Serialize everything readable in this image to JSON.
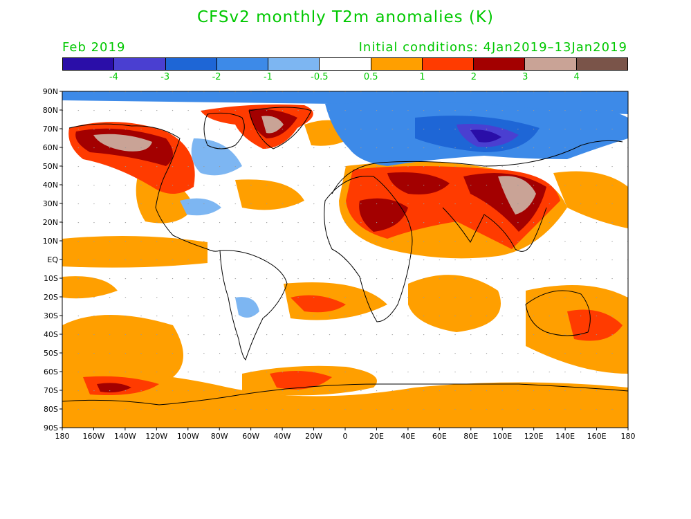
{
  "title": "CFSv2 monthly T2m anomalies (K)",
  "subtitle_left": "Feb 2019",
  "subtitle_right": "Initial conditions: 4Jan2019–13Jan2019",
  "colorbar": {
    "colors": [
      "#2a0ea8",
      "#4a3fd1",
      "#1e66d6",
      "#3d8ae8",
      "#7db6f2",
      "#ffffff",
      "#ff9f00",
      "#ff3b00",
      "#a30000",
      "#c9a396",
      "#7a5449"
    ],
    "labels": [
      "-4",
      "-3",
      "-2",
      "-1",
      "-0.5",
      "0.5",
      "1",
      "2",
      "3",
      "4"
    ]
  },
  "lat_labels": [
    "90N",
    "80N",
    "70N",
    "60N",
    "50N",
    "40N",
    "30N",
    "20N",
    "10N",
    "EQ",
    "10S",
    "20S",
    "30S",
    "40S",
    "50S",
    "60S",
    "70S",
    "80S",
    "90S"
  ],
  "lon_labels": [
    "180",
    "160W",
    "140W",
    "120W",
    "100W",
    "80W",
    "60W",
    "40W",
    "20W",
    "0",
    "20E",
    "40E",
    "60E",
    "80E",
    "100E",
    "120E",
    "140E",
    "160E",
    "180"
  ]
}
